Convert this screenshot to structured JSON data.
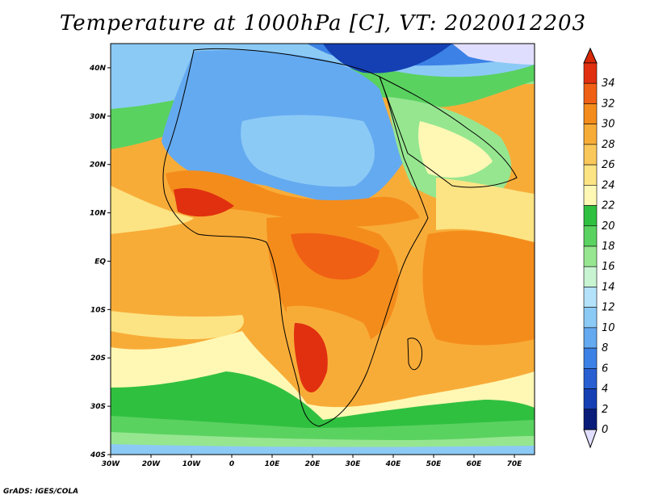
{
  "title": "Temperature at 1000hPa [C], VT: 2020012203",
  "footer": "GrADS: IGES/COLA",
  "map": {
    "lon_range": [
      -30,
      75
    ],
    "lat_range": [
      -40,
      45
    ],
    "lon_ticks": [
      "30W",
      "20W",
      "10W",
      "0",
      "10E",
      "20E",
      "30E",
      "40E",
      "50E",
      "60E",
      "70E"
    ],
    "lat_ticks": [
      "40N",
      "30N",
      "20N",
      "10N",
      "EQ",
      "10S",
      "20S",
      "30S",
      "40S"
    ]
  },
  "colorbar": {
    "labels": [
      "34",
      "32",
      "30",
      "28",
      "26",
      "24",
      "22",
      "20",
      "18",
      "16",
      "14",
      "12",
      "10",
      "8",
      "6",
      "4",
      "2",
      "0"
    ],
    "colors": [
      "#e03010",
      "#f06014",
      "#f48c1c",
      "#f8ac38",
      "#fac85a",
      "#fce484",
      "#fff8b4",
      "#30c040",
      "#5ad260",
      "#96e690",
      "#c8f4d2",
      "#b4e2fa",
      "#8ccaf6",
      "#64aaf0",
      "#3c82e6",
      "#2860d2",
      "#1440b4",
      "#0a1c7a"
    ],
    "over_color": "#d82808",
    "under_color": "#e0deff"
  }
}
